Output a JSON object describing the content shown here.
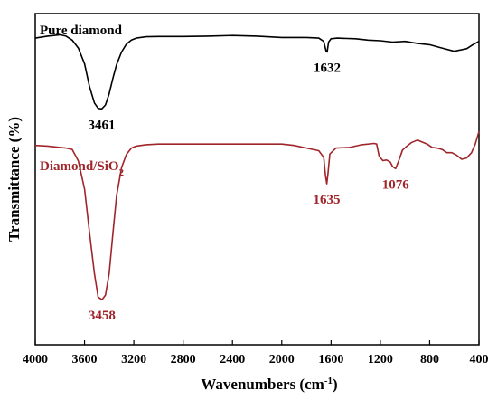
{
  "chart_data": {
    "type": "line",
    "title": "",
    "xlabel": "Wavenumbers (cm",
    "xlabel_sup": "-1",
    "xlabel_suffix": ")",
    "ylabel": "Transmittance (%)",
    "xlim": [
      4000,
      400
    ],
    "ylim": [
      0,
      100
    ],
    "x_reversed": true,
    "x_ticks": [
      4000,
      3600,
      3200,
      2800,
      2400,
      2000,
      1600,
      1200,
      800,
      400
    ],
    "y_ticks_shown": false,
    "grid": false,
    "legend": "inline series labels",
    "series": [
      {
        "name": "Pure diamond",
        "label_main": "Pure diamond",
        "label_sub": "",
        "color": "#000000",
        "x": [
          4000,
          3900,
          3800,
          3750,
          3700,
          3650,
          3600,
          3560,
          3520,
          3490,
          3461,
          3430,
          3400,
          3370,
          3340,
          3300,
          3260,
          3220,
          3180,
          3100,
          3000,
          2800,
          2600,
          2400,
          2200,
          2000,
          1800,
          1700,
          1660,
          1640,
          1632,
          1620,
          1600,
          1550,
          1400,
          1300,
          1200,
          1100,
          1000,
          900,
          800,
          700,
          600,
          500,
          450,
          400
        ],
        "y": [
          92.6,
          93.2,
          93.6,
          93.2,
          92.0,
          89.6,
          84.8,
          78.0,
          73.0,
          71.4,
          71.2,
          72.4,
          75.8,
          80.4,
          84.6,
          88.4,
          90.8,
          92.0,
          92.6,
          93.0,
          93.1,
          93.1,
          93.2,
          93.4,
          93.2,
          92.8,
          92.8,
          92.6,
          91.6,
          88.6,
          88.4,
          91.4,
          92.4,
          92.6,
          92.4,
          92.0,
          91.8,
          91.4,
          91.6,
          91.0,
          90.6,
          89.6,
          88.6,
          89.4,
          90.6,
          91.6
        ]
      },
      {
        "name": "Diamond/SiO2",
        "label_main": "Diamond/SiO",
        "label_sub": "2",
        "color": "#a0252a",
        "x": [
          4000,
          3900,
          3800,
          3750,
          3700,
          3650,
          3600,
          3560,
          3520,
          3490,
          3458,
          3430,
          3400,
          3370,
          3340,
          3300,
          3260,
          3220,
          3180,
          3100,
          3000,
          2800,
          2600,
          2400,
          2200,
          2000,
          1900,
          1800,
          1700,
          1660,
          1645,
          1635,
          1625,
          1610,
          1560,
          1450,
          1350,
          1250,
          1230,
          1210,
          1180,
          1150,
          1120,
          1100,
          1076,
          1050,
          1020,
          990,
          950,
          900,
          860,
          820,
          780,
          740,
          700,
          660,
          620,
          580,
          540,
          500,
          460,
          430,
          400
        ],
        "y": [
          60.2,
          60.0,
          59.6,
          59.4,
          59.0,
          55.5,
          47.0,
          34.0,
          21.5,
          14.4,
          13.6,
          15.0,
          21.5,
          33.5,
          45.0,
          53.5,
          57.5,
          59.4,
          60.0,
          60.4,
          60.6,
          60.6,
          60.6,
          60.6,
          60.6,
          60.6,
          60.2,
          59.4,
          58.6,
          56.6,
          51.0,
          48.6,
          51.6,
          57.6,
          59.4,
          59.6,
          60.4,
          60.8,
          60.6,
          57.0,
          55.6,
          55.8,
          55.2,
          53.8,
          53.2,
          55.6,
          58.8,
          59.8,
          61.0,
          61.8,
          61.2,
          60.6,
          59.6,
          59.4,
          59.0,
          58.0,
          58.0,
          57.2,
          56.0,
          56.4,
          58.0,
          60.6,
          64.4
        ]
      }
    ],
    "annotations": [
      {
        "text": "3461",
        "series": 0,
        "x": 3461,
        "y": 71.2
      },
      {
        "text": "1632",
        "series": 0,
        "x": 1632,
        "y": 88.4
      },
      {
        "text": "3458",
        "series": 1,
        "x": 3458,
        "y": 13.6
      },
      {
        "text": "1635",
        "series": 1,
        "x": 1635,
        "y": 48.6
      },
      {
        "text": "1076",
        "series": 1,
        "x": 1076,
        "y": 53.2
      }
    ]
  }
}
